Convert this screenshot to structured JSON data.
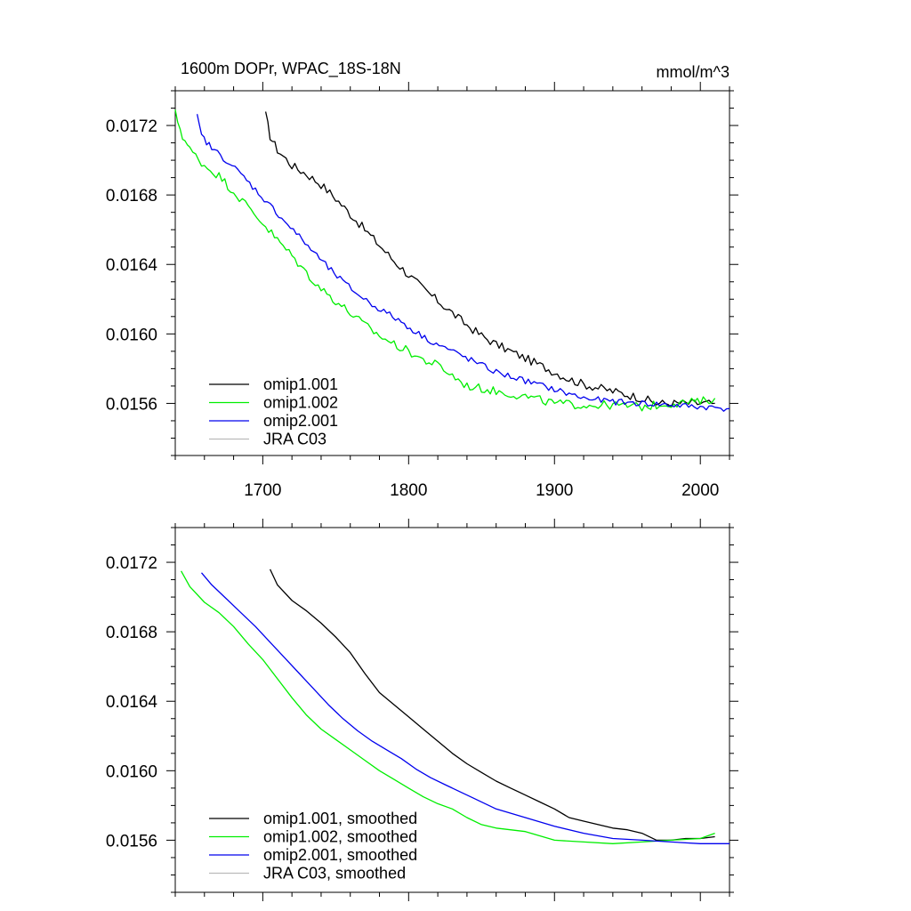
{
  "chart_data": [
    {
      "type": "line",
      "title": "1600m DOPr, WPAC_18S-18N",
      "units": "mmol/m^3",
      "xlim": [
        1640,
        2020
      ],
      "ylim": [
        0.0153,
        0.0174
      ],
      "xticks": [
        1700,
        1800,
        1900,
        2000
      ],
      "yticks": [
        0.0156,
        0.016,
        0.0164,
        0.0168,
        0.0172
      ],
      "ytick_labels": [
        "0.0156",
        "0.0160",
        "0.0164",
        "0.0168",
        "0.0172"
      ],
      "xtick_labels": [
        "1700",
        "1800",
        "1900",
        "2000"
      ],
      "show_xtick_labels": true,
      "legend_position": "bottom-left",
      "series": [
        {
          "name": "omip1.001",
          "label": "omip1.001",
          "color": "#000000",
          "noise": 2.5e-05,
          "x": [
            1702,
            1705,
            1710,
            1720,
            1730,
            1740,
            1750,
            1760,
            1770,
            1780,
            1790,
            1800,
            1810,
            1820,
            1830,
            1840,
            1850,
            1860,
            1870,
            1880,
            1890,
            1900,
            1910,
            1920,
            1930,
            1940,
            1950,
            1960,
            1970,
            1980,
            1990,
            2000,
            2010
          ],
          "y": [
            0.01726,
            0.01714,
            0.01706,
            0.01697,
            0.01692,
            0.01686,
            0.01678,
            0.01669,
            0.0166,
            0.01651,
            0.01642,
            0.01634,
            0.01626,
            0.01619,
            0.01612,
            0.01605,
            0.01599,
            0.01594,
            0.0159,
            0.01586,
            0.01582,
            0.01578,
            0.01574,
            0.01571,
            0.01569,
            0.01567,
            0.01565,
            0.01563,
            0.0156,
            0.0156,
            0.0156,
            0.0156,
            0.0156
          ]
        },
        {
          "name": "omip1.002",
          "label": "omip1.002",
          "color": "#00ee00",
          "noise": 2.5e-05,
          "x": [
            1640,
            1645,
            1650,
            1660,
            1670,
            1680,
            1690,
            1700,
            1710,
            1720,
            1730,
            1740,
            1750,
            1760,
            1770,
            1780,
            1790,
            1800,
            1810,
            1820,
            1830,
            1840,
            1860,
            1880,
            1900,
            1920,
            1940,
            1960,
            1980,
            2000,
            2010
          ],
          "y": [
            0.01727,
            0.01714,
            0.01706,
            0.01697,
            0.01691,
            0.01682,
            0.01673,
            0.01664,
            0.01654,
            0.01645,
            0.01635,
            0.01626,
            0.01619,
            0.01612,
            0.01605,
            0.01599,
            0.01594,
            0.0159,
            0.01585,
            0.01582,
            0.01576,
            0.0157,
            0.01567,
            0.01564,
            0.0156,
            0.01559,
            0.01559,
            0.01558,
            0.0156,
            0.01561,
            0.01563
          ]
        },
        {
          "name": "omip2.001",
          "label": "omip2.001",
          "color": "#0000ee",
          "noise": 1.8e-05,
          "x": [
            1655,
            1658,
            1665,
            1675,
            1685,
            1695,
            1705,
            1715,
            1725,
            1735,
            1745,
            1755,
            1765,
            1775,
            1785,
            1795,
            1805,
            1815,
            1825,
            1835,
            1845,
            1860,
            1880,
            1900,
            1920,
            1940,
            1960,
            1980,
            2000,
            2020
          ],
          "y": [
            0.01725,
            0.01714,
            0.01707,
            0.017,
            0.01692,
            0.01683,
            0.01674,
            0.01665,
            0.01656,
            0.01647,
            0.01638,
            0.0163,
            0.01623,
            0.01617,
            0.01612,
            0.01607,
            0.01601,
            0.01596,
            0.01592,
            0.01588,
            0.01584,
            0.01578,
            0.01573,
            0.01568,
            0.01563,
            0.01561,
            0.0156,
            0.01559,
            0.01558,
            0.01557
          ]
        },
        {
          "name": "JRA C03",
          "label": "JRA C03",
          "color": "#bbbbbb",
          "noise": 0,
          "x": [],
          "y": []
        }
      ]
    },
    {
      "type": "line",
      "title": "",
      "units": "",
      "xlim": [
        1640,
        2020
      ],
      "ylim": [
        0.0153,
        0.0174
      ],
      "xticks": [
        1700,
        1800,
        1900,
        2000
      ],
      "yticks": [
        0.0156,
        0.016,
        0.0164,
        0.0168,
        0.0172
      ],
      "ytick_labels": [
        "0.0156",
        "0.0160",
        "0.0164",
        "0.0168",
        "0.0172"
      ],
      "xtick_labels": [],
      "show_xtick_labels": false,
      "legend_position": "bottom-left",
      "series": [
        {
          "name": "omip1.001 smoothed",
          "label": "omip1.001, smoothed",
          "color": "#000000",
          "noise": 0,
          "x": [
            1705,
            1710,
            1720,
            1730,
            1740,
            1750,
            1760,
            1770,
            1780,
            1790,
            1800,
            1810,
            1820,
            1830,
            1840,
            1850,
            1860,
            1870,
            1880,
            1890,
            1900,
            1910,
            1920,
            1930,
            1940,
            1950,
            1960,
            1970,
            1980,
            1990,
            2000,
            2010
          ],
          "y": [
            0.01716,
            0.01707,
            0.01698,
            0.01692,
            0.01685,
            0.01677,
            0.01668,
            0.01656,
            0.01645,
            0.01638,
            0.01631,
            0.01624,
            0.01617,
            0.0161,
            0.01604,
            0.01599,
            0.01594,
            0.0159,
            0.01586,
            0.01582,
            0.01578,
            0.01573,
            0.01571,
            0.01569,
            0.01567,
            0.01566,
            0.01564,
            0.0156,
            0.0156,
            0.01561,
            0.01561,
            0.01562
          ]
        },
        {
          "name": "omip1.002 smoothed",
          "label": "omip1.002, smoothed",
          "color": "#00ee00",
          "noise": 0,
          "x": [
            1644,
            1650,
            1660,
            1670,
            1680,
            1690,
            1700,
            1710,
            1720,
            1730,
            1740,
            1750,
            1760,
            1770,
            1780,
            1790,
            1800,
            1810,
            1820,
            1830,
            1840,
            1850,
            1860,
            1880,
            1900,
            1920,
            1940,
            1960,
            1980,
            2000,
            2010
          ],
          "y": [
            0.01715,
            0.01706,
            0.01697,
            0.01691,
            0.01683,
            0.01673,
            0.01664,
            0.01653,
            0.01642,
            0.01632,
            0.01624,
            0.01618,
            0.01612,
            0.01606,
            0.016,
            0.01595,
            0.0159,
            0.01585,
            0.01581,
            0.01578,
            0.01573,
            0.01569,
            0.01567,
            0.01565,
            0.0156,
            0.01559,
            0.01558,
            0.01559,
            0.0156,
            0.01561,
            0.01564
          ]
        },
        {
          "name": "omip2.001 smoothed",
          "label": "omip2.001, smoothed",
          "color": "#0000ee",
          "noise": 0,
          "x": [
            1658,
            1665,
            1675,
            1685,
            1695,
            1705,
            1715,
            1725,
            1735,
            1745,
            1755,
            1765,
            1775,
            1785,
            1795,
            1805,
            1815,
            1825,
            1835,
            1845,
            1860,
            1880,
            1900,
            1920,
            1940,
            1960,
            1980,
            2000,
            2020
          ],
          "y": [
            0.01714,
            0.01707,
            0.01699,
            0.01691,
            0.01683,
            0.01674,
            0.01665,
            0.01656,
            0.01647,
            0.01638,
            0.0163,
            0.01623,
            0.01617,
            0.01612,
            0.01607,
            0.01601,
            0.01596,
            0.01592,
            0.01588,
            0.01584,
            0.01578,
            0.01573,
            0.01568,
            0.01564,
            0.01561,
            0.0156,
            0.01559,
            0.01558,
            0.01558
          ]
        },
        {
          "name": "JRA C03 smoothed",
          "label": "JRA C03, smoothed",
          "color": "#bbbbbb",
          "noise": 0,
          "x": [],
          "y": []
        }
      ]
    }
  ]
}
